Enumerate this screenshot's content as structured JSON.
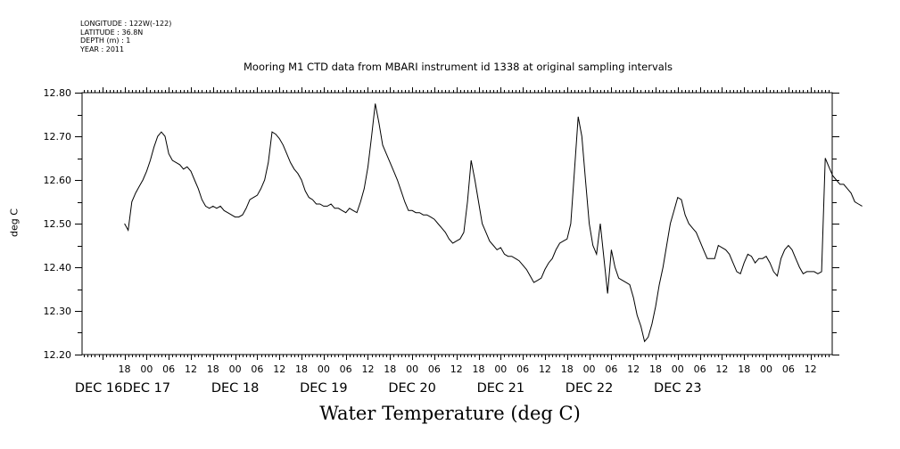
{
  "meta_lines": [
    "LONGITUDE : 122W(-122)",
    "LATITUDE : 36.8N",
    "DEPTH (m) : 1",
    "YEAR : 2011"
  ],
  "chart_data": {
    "type": "line",
    "title": "Mooring M1 CTD data from MBARI instrument id 1338 at original sampling intervals",
    "xlabel": "Water Temperature (deg C)",
    "ylabel": "deg C",
    "ylim": [
      12.2,
      12.8
    ],
    "yticks": [
      "12.20",
      "12.30",
      "12.40",
      "12.50",
      "12.60",
      "12.70",
      "12.80"
    ],
    "xlim_hours": [
      0,
      204
    ],
    "hour_tick_labels": [
      "18",
      "00",
      "06",
      "12",
      "18",
      "00",
      "06",
      "12",
      "18",
      "00",
      "06",
      "12",
      "18",
      "00",
      "06",
      "12",
      "18",
      "00",
      "06",
      "12",
      "18",
      "00",
      "06",
      "12",
      "18",
      "00",
      "06",
      "12",
      "18",
      "00",
      "06",
      "12"
    ],
    "day_labels": [
      "DEC 16",
      "DEC 17",
      "DEC 18",
      "DEC 19",
      "DEC 20",
      "DEC 21",
      "DEC 22",
      "DEC 23"
    ],
    "series": [
      {
        "points": [
          [
            0,
            12.5
          ],
          [
            1,
            12.485
          ],
          [
            2,
            12.55
          ],
          [
            3,
            12.57
          ],
          [
            4,
            12.585
          ],
          [
            5,
            12.6
          ],
          [
            6,
            12.62
          ],
          [
            7,
            12.645
          ],
          [
            8,
            12.675
          ],
          [
            9,
            12.7
          ],
          [
            10,
            12.71
          ],
          [
            11,
            12.7
          ],
          [
            12,
            12.66
          ],
          [
            13,
            12.645
          ],
          [
            14,
            12.64
          ],
          [
            15,
            12.635
          ],
          [
            16,
            12.625
          ],
          [
            17,
            12.63
          ],
          [
            18,
            12.62
          ],
          [
            19,
            12.6
          ],
          [
            20,
            12.58
          ],
          [
            21,
            12.555
          ],
          [
            22,
            12.54
          ],
          [
            23,
            12.535
          ],
          [
            24,
            12.54
          ],
          [
            25,
            12.535
          ],
          [
            26,
            12.54
          ],
          [
            27,
            12.53
          ],
          [
            28,
            12.525
          ],
          [
            29,
            12.52
          ],
          [
            30,
            12.515
          ],
          [
            31,
            12.515
          ],
          [
            32,
            12.52
          ],
          [
            33,
            12.535
          ],
          [
            34,
            12.555
          ],
          [
            35,
            12.56
          ],
          [
            36,
            12.565
          ],
          [
            37,
            12.58
          ],
          [
            38,
            12.6
          ],
          [
            39,
            12.64
          ],
          [
            40,
            12.71
          ],
          [
            41,
            12.705
          ],
          [
            42,
            12.695
          ],
          [
            43,
            12.68
          ],
          [
            44,
            12.66
          ],
          [
            45,
            12.64
          ],
          [
            46,
            12.625
          ],
          [
            47,
            12.615
          ],
          [
            48,
            12.6
          ],
          [
            49,
            12.575
          ],
          [
            50,
            12.56
          ],
          [
            51,
            12.555
          ],
          [
            52,
            12.545
          ],
          [
            53,
            12.545
          ],
          [
            54,
            12.54
          ],
          [
            55,
            12.54
          ],
          [
            56,
            12.545
          ],
          [
            57,
            12.535
          ],
          [
            58,
            12.535
          ],
          [
            59,
            12.53
          ],
          [
            60,
            12.525
          ],
          [
            61,
            12.535
          ],
          [
            62,
            12.53
          ],
          [
            63,
            12.525
          ],
          [
            64,
            12.55
          ],
          [
            65,
            12.58
          ],
          [
            66,
            12.63
          ],
          [
            67,
            12.7
          ],
          [
            68,
            12.775
          ],
          [
            69,
            12.73
          ],
          [
            70,
            12.68
          ],
          [
            71,
            12.66
          ],
          [
            72,
            12.64
          ],
          [
            73,
            12.62
          ],
          [
            74,
            12.6
          ],
          [
            75,
            12.575
          ],
          [
            76,
            12.55
          ],
          [
            77,
            12.53
          ],
          [
            78,
            12.53
          ],
          [
            79,
            12.525
          ],
          [
            80,
            12.525
          ],
          [
            81,
            12.52
          ],
          [
            82,
            12.52
          ],
          [
            83,
            12.515
          ],
          [
            84,
            12.51
          ],
          [
            85,
            12.5
          ],
          [
            86,
            12.49
          ],
          [
            87,
            12.48
          ],
          [
            88,
            12.465
          ],
          [
            89,
            12.455
          ],
          [
            90,
            12.46
          ],
          [
            91,
            12.465
          ],
          [
            92,
            12.48
          ],
          [
            93,
            12.55
          ],
          [
            94,
            12.645
          ],
          [
            95,
            12.6
          ],
          [
            96,
            12.55
          ],
          [
            97,
            12.5
          ],
          [
            98,
            12.48
          ],
          [
            99,
            12.46
          ],
          [
            100,
            12.45
          ],
          [
            101,
            12.44
          ],
          [
            102,
            12.445
          ],
          [
            103,
            12.43
          ],
          [
            104,
            12.425
          ],
          [
            105,
            12.425
          ],
          [
            106,
            12.42
          ],
          [
            107,
            12.415
          ],
          [
            108,
            12.405
          ],
          [
            109,
            12.395
          ],
          [
            110,
            12.38
          ],
          [
            111,
            12.365
          ],
          [
            112,
            12.37
          ],
          [
            113,
            12.375
          ],
          [
            114,
            12.395
          ],
          [
            115,
            12.41
          ],
          [
            116,
            12.42
          ],
          [
            117,
            12.44
          ],
          [
            118,
            12.455
          ],
          [
            119,
            12.46
          ],
          [
            120,
            12.465
          ],
          [
            121,
            12.5
          ],
          [
            122,
            12.62
          ],
          [
            123,
            12.745
          ],
          [
            124,
            12.7
          ],
          [
            125,
            12.6
          ],
          [
            126,
            12.5
          ],
          [
            127,
            12.45
          ],
          [
            128,
            12.43
          ],
          [
            129,
            12.5
          ],
          [
            130,
            12.42
          ],
          [
            131,
            12.34
          ],
          [
            132,
            12.44
          ],
          [
            133,
            12.4
          ],
          [
            134,
            12.375
          ],
          [
            135,
            12.37
          ],
          [
            136,
            12.365
          ],
          [
            137,
            12.36
          ],
          [
            138,
            12.33
          ],
          [
            139,
            12.29
          ],
          [
            140,
            12.265
          ],
          [
            141,
            12.23
          ],
          [
            142,
            12.24
          ],
          [
            143,
            12.27
          ],
          [
            144,
            12.31
          ],
          [
            145,
            12.36
          ],
          [
            146,
            12.4
          ],
          [
            147,
            12.45
          ],
          [
            148,
            12.5
          ],
          [
            149,
            12.53
          ],
          [
            150,
            12.56
          ],
          [
            151,
            12.555
          ],
          [
            152,
            12.52
          ],
          [
            153,
            12.5
          ],
          [
            154,
            12.49
          ],
          [
            155,
            12.48
          ],
          [
            156,
            12.46
          ],
          [
            157,
            12.44
          ],
          [
            158,
            12.42
          ],
          [
            159,
            12.42
          ],
          [
            160,
            12.42
          ],
          [
            161,
            12.45
          ],
          [
            162,
            12.445
          ],
          [
            163,
            12.44
          ],
          [
            164,
            12.43
          ],
          [
            165,
            12.41
          ],
          [
            166,
            12.39
          ],
          [
            167,
            12.385
          ],
          [
            168,
            12.41
          ],
          [
            169,
            12.43
          ],
          [
            170,
            12.425
          ],
          [
            171,
            12.41
          ],
          [
            172,
            12.42
          ],
          [
            173,
            12.42
          ],
          [
            174,
            12.425
          ],
          [
            175,
            12.41
          ],
          [
            176,
            12.39
          ],
          [
            177,
            12.38
          ],
          [
            178,
            12.42
          ],
          [
            179,
            12.44
          ],
          [
            180,
            12.45
          ],
          [
            181,
            12.44
          ],
          [
            182,
            12.42
          ],
          [
            183,
            12.4
          ],
          [
            184,
            12.385
          ],
          [
            185,
            12.39
          ],
          [
            186,
            12.39
          ],
          [
            187,
            12.39
          ],
          [
            188,
            12.385
          ],
          [
            189,
            12.39
          ],
          [
            190,
            12.65
          ],
          [
            191,
            12.63
          ],
          [
            192,
            12.61
          ],
          [
            193,
            12.6
          ],
          [
            194,
            12.59
          ],
          [
            195,
            12.59
          ],
          [
            196,
            12.58
          ],
          [
            197,
            12.57
          ],
          [
            198,
            12.55
          ],
          [
            199,
            12.545
          ],
          [
            200,
            12.54
          ]
        ]
      }
    ]
  }
}
